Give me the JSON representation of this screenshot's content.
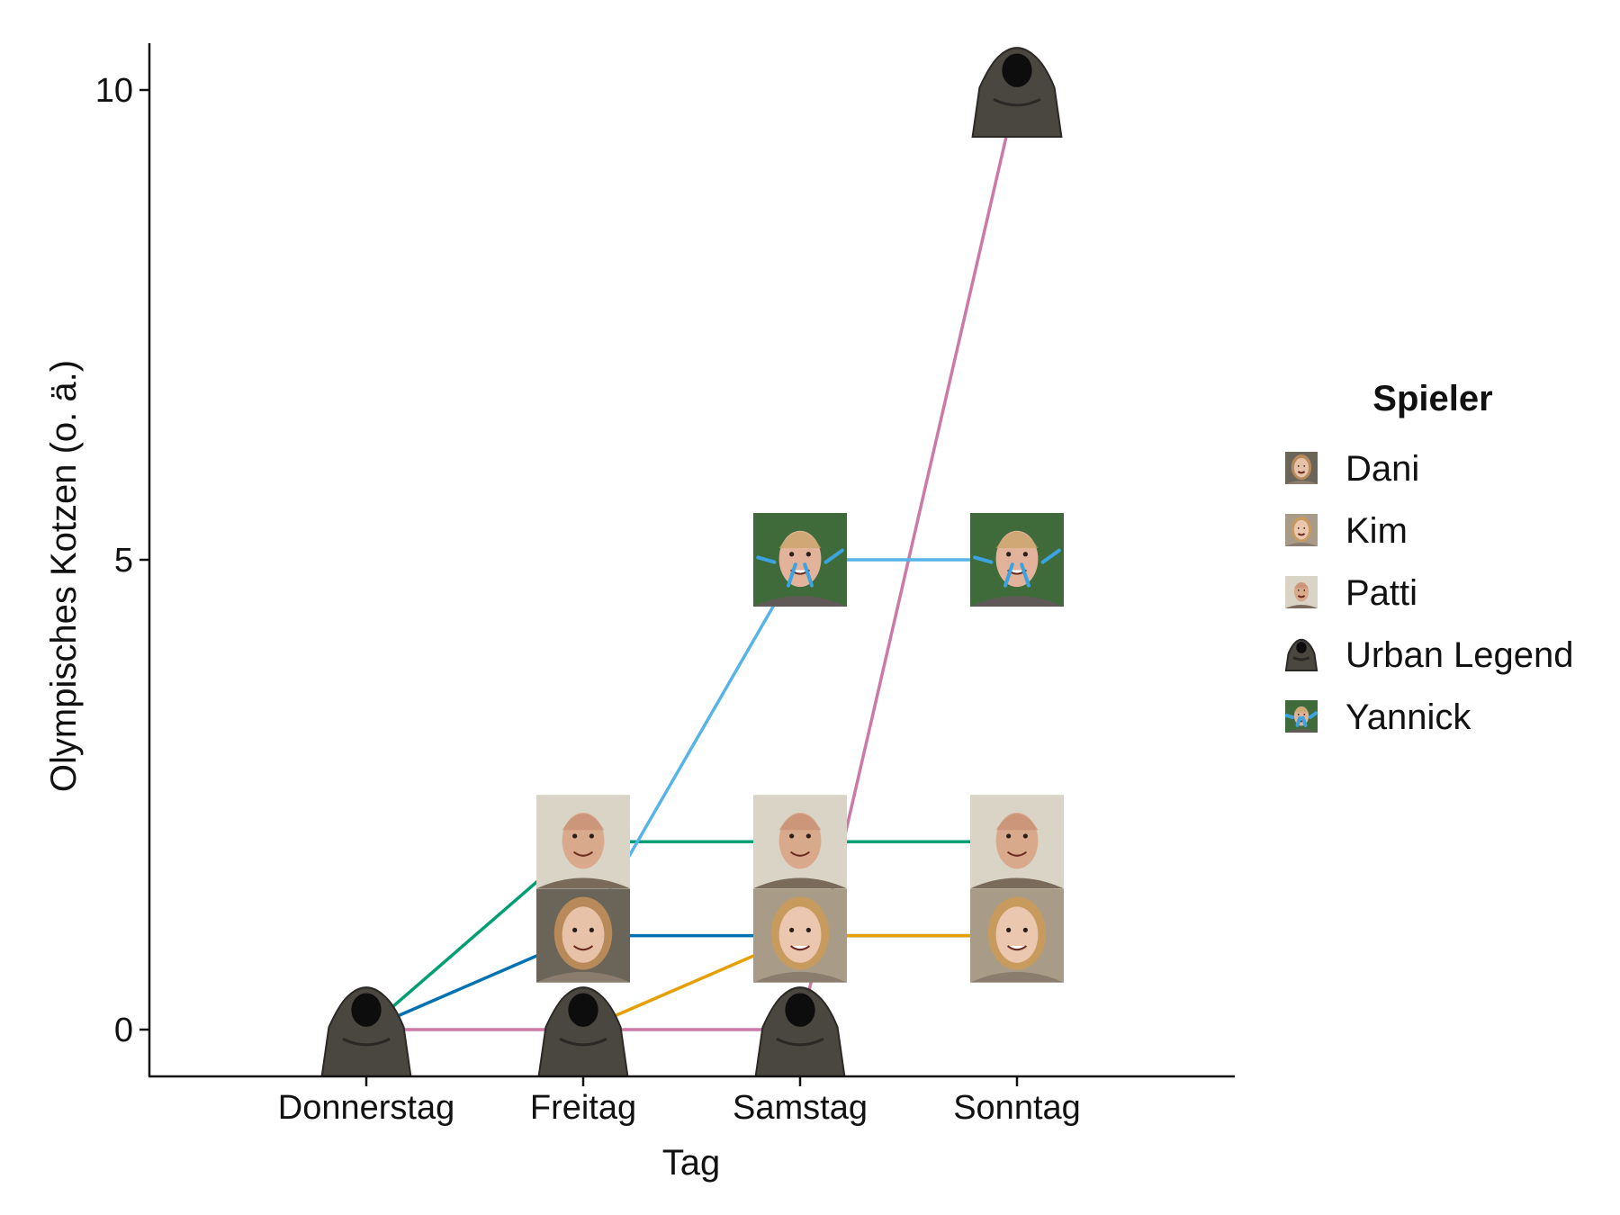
{
  "chart_data": {
    "type": "line",
    "xlabel": "Tag",
    "ylabel": "Olympisches Kotzen (o. ä.)",
    "categories": [
      "Donnerstag",
      "Freitag",
      "Samstag",
      "Sonntag"
    ],
    "ylim": [
      -0.5,
      10.5
    ],
    "yticks": [
      0,
      5,
      10
    ],
    "legend_title": "Spieler",
    "legend_position": "right",
    "grid": false,
    "marker": "player-face-photo",
    "series": [
      {
        "name": "Dani",
        "color": "#0072B2",
        "icon": "dani-face-icon",
        "x": [
          "Donnerstag",
          "Freitag",
          "Samstag",
          "Sonntag"
        ],
        "values": [
          0,
          1,
          1,
          1
        ]
      },
      {
        "name": "Kim",
        "color": "#E69F00",
        "icon": "kim-face-icon",
        "x": [
          "Freitag",
          "Samstag",
          "Sonntag"
        ],
        "values": [
          0,
          1,
          1
        ]
      },
      {
        "name": "Patti",
        "color": "#009E73",
        "icon": "patti-face-icon",
        "x": [
          "Donnerstag",
          "Freitag",
          "Samstag",
          "Sonntag"
        ],
        "values": [
          0,
          2,
          2,
          2
        ]
      },
      {
        "name": "Urban Legend",
        "color": "#CC79A7",
        "icon": "hooded-figure-icon",
        "x": [
          "Donnerstag",
          "Freitag",
          "Samstag",
          "Sonntag"
        ],
        "values": [
          0,
          0,
          0,
          10
        ]
      },
      {
        "name": "Yannick",
        "color": "#56B4E9",
        "icon": "yannick-face-icon",
        "x": [
          "Freitag",
          "Samstag",
          "Sonntag"
        ],
        "values": [
          1,
          5,
          5
        ]
      }
    ],
    "markers": [
      {
        "series": "Urban Legend",
        "x": "Donnerstag",
        "y": 0
      },
      {
        "series": "Urban Legend",
        "x": "Freitag",
        "y": 0
      },
      {
        "series": "Dani",
        "x": "Freitag",
        "y": 1
      },
      {
        "series": "Patti",
        "x": "Freitag",
        "y": 2
      },
      {
        "series": "Urban Legend",
        "x": "Samstag",
        "y": 0
      },
      {
        "series": "Kim",
        "x": "Samstag",
        "y": 1
      },
      {
        "series": "Patti",
        "x": "Samstag",
        "y": 2
      },
      {
        "series": "Yannick",
        "x": "Samstag",
        "y": 5
      },
      {
        "series": "Kim",
        "x": "Sonntag",
        "y": 1
      },
      {
        "series": "Patti",
        "x": "Sonntag",
        "y": 2
      },
      {
        "series": "Yannick",
        "x": "Sonntag",
        "y": 5
      },
      {
        "series": "Urban Legend",
        "x": "Sonntag",
        "y": 10
      }
    ]
  }
}
